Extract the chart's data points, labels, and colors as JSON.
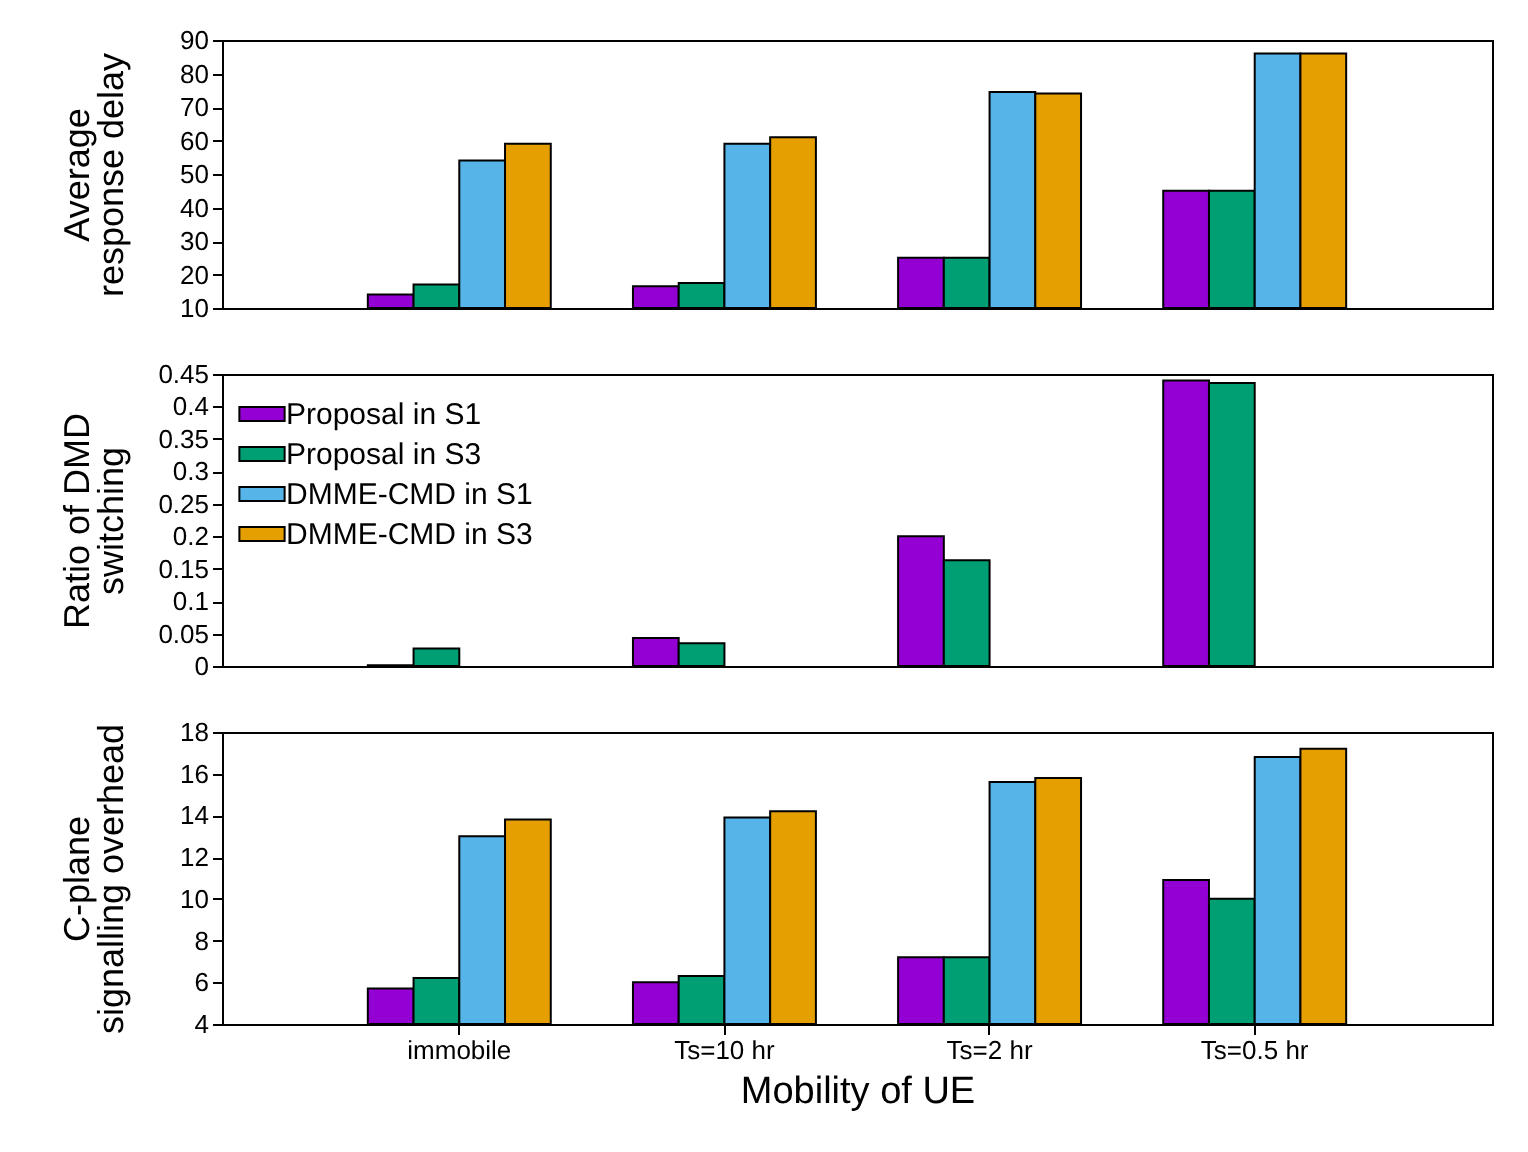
{
  "chart_data": [
    {
      "type": "bar",
      "ylabel": "Average\nresponse delay",
      "categories": [
        null,
        null,
        null,
        null
      ],
      "tick_labels": "y",
      "ylim": [
        10,
        90
      ],
      "yticks": [
        10,
        20,
        30,
        40,
        50,
        60,
        70,
        80,
        90
      ],
      "grid": false,
      "legend": false,
      "series": [
        {
          "color": "#9400d3",
          "values": [
            14,
            16.5,
            25,
            45
          ]
        },
        {
          "color": "#009e73",
          "values": [
            17,
            17.5,
            25,
            45
          ]
        },
        {
          "color": "#56b4e9",
          "values": [
            54,
            59,
            74.5,
            86
          ]
        },
        {
          "color": "#e69f00",
          "values": [
            59,
            61,
            74,
            86
          ]
        }
      ]
    },
    {
      "type": "bar",
      "ylabel": "Ratio of DMD\nswitching",
      "categories": [
        null,
        null,
        null,
        null
      ],
      "tick_labels": "y",
      "ylim": [
        0,
        0.45
      ],
      "yticks": [
        0,
        0.05,
        0.1,
        0.15,
        0.2,
        0.25,
        0.3,
        0.35,
        0.4,
        0.45
      ],
      "grid": false,
      "legend": "top left",
      "series": [
        {
          "name": "Proposal in S1",
          "color": "#9400d3",
          "values": [
            0.001,
            0.043,
            0.2,
            0.44
          ]
        },
        {
          "name": "Proposal in S3",
          "color": "#009e73",
          "values": [
            0.027,
            0.035,
            0.163,
            0.436
          ]
        },
        {
          "name": "DMME-CMD in S1",
          "color": "#56b4e9",
          "values": [
            null,
            null,
            null,
            null
          ]
        },
        {
          "name": "DMME-CMD in S3",
          "color": "#e69f00",
          "values": [
            null,
            null,
            null,
            null
          ]
        }
      ]
    },
    {
      "type": "bar",
      "xlabel": "Mobility of UE",
      "ylabel": "C-plane\nsignalling overhead",
      "categories": [
        "immobile",
        "Ts=10 hr",
        "Ts=2 hr",
        "Ts=0.5 hr"
      ],
      "ylim": [
        4,
        18
      ],
      "yticks": [
        4,
        6,
        8,
        10,
        12,
        14,
        16,
        18
      ],
      "grid": false,
      "legend": false,
      "series": [
        {
          "color": "#9400d3",
          "values": [
            5.7,
            6.0,
            7.2,
            10.9
          ]
        },
        {
          "color": "#009e73",
          "values": [
            6.2,
            6.3,
            7.2,
            10.0
          ]
        },
        {
          "color": "#56b4e9",
          "values": [
            13.0,
            13.9,
            15.6,
            16.8
          ]
        },
        {
          "color": "#e69f00",
          "values": [
            13.8,
            14.2,
            15.8,
            17.2
          ]
        }
      ]
    }
  ]
}
